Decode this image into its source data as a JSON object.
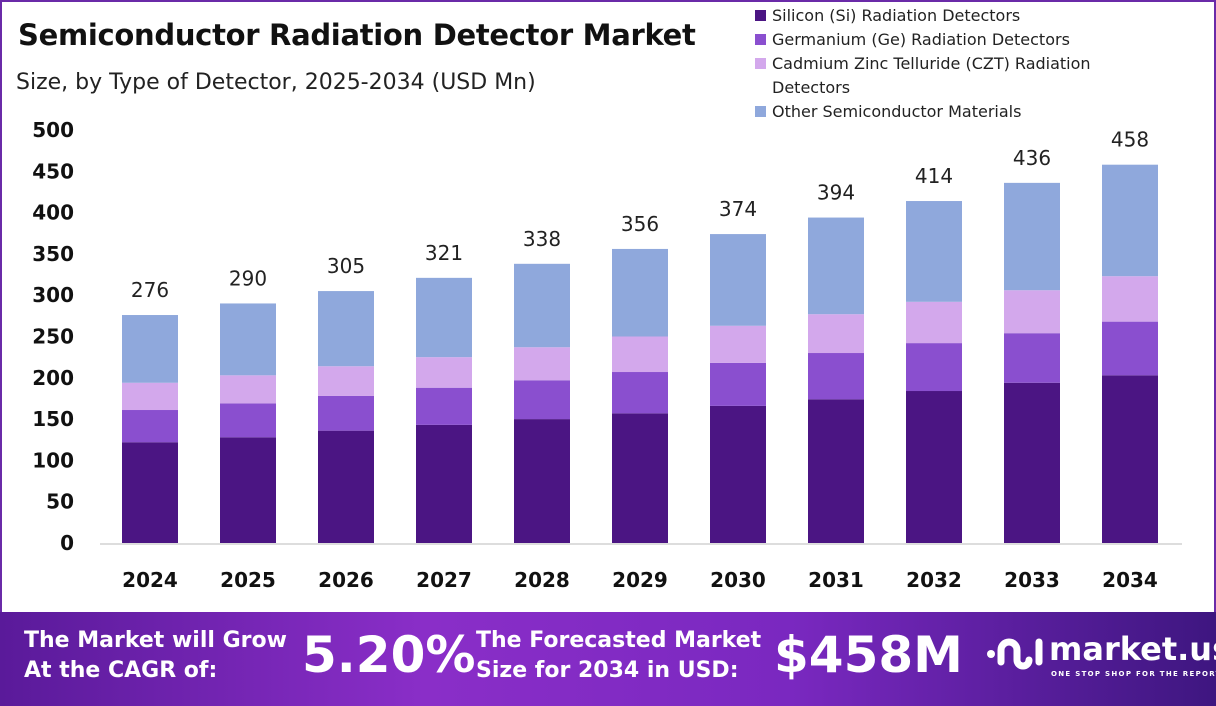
{
  "chart_data": {
    "type": "bar",
    "stacked": true,
    "title": "Semiconductor Radiation Detector Market",
    "subtitle": "Size, by Type of Detector, 2025-2034 (USD Mn)",
    "xlabel": "",
    "ylabel": "",
    "ylim": [
      0,
      500
    ],
    "yticks": [
      0,
      50,
      100,
      150,
      200,
      250,
      300,
      350,
      400,
      450,
      500
    ],
    "grid": false,
    "legend_position": "top-right",
    "categories": [
      "2024",
      "2025",
      "2026",
      "2027",
      "2028",
      "2029",
      "2030",
      "2031",
      "2032",
      "2033",
      "2034"
    ],
    "totals": [
      276,
      290,
      305,
      321,
      338,
      356,
      374,
      394,
      414,
      436,
      458
    ],
    "series": [
      {
        "name": "Silicon (Si) Radiation Detectors",
        "color": "#4b1583",
        "values": [
          122,
          128,
          136,
          143,
          150,
          157,
          166,
          174,
          184,
          194,
          203
        ]
      },
      {
        "name": "Germanium (Ge) Radiation Detectors",
        "color": "#8a4fcf",
        "values": [
          39,
          41,
          42,
          45,
          47,
          50,
          52,
          56,
          58,
          60,
          65
        ]
      },
      {
        "name": "Cadmium Zinc Telluride (CZT) Radiation Detectors",
        "color": "#d3a8ec",
        "values": [
          33,
          34,
          36,
          37,
          40,
          43,
          45,
          47,
          50,
          52,
          55
        ]
      },
      {
        "name": "Other Semiconductor Materials",
        "color": "#8fa8dc",
        "values": [
          82,
          87,
          91,
          96,
          101,
          106,
          111,
          117,
          122,
          130,
          135
        ]
      }
    ]
  },
  "footer": {
    "cagr_label_1": "The Market will Grow",
    "cagr_label_2": "At the CAGR of:",
    "cagr_value": "5.20%",
    "forecast_label_1": "The Forecasted Market",
    "forecast_label_2": "Size for 2034 in USD:",
    "forecast_value": "$458M",
    "brand": "market.us",
    "brand_tagline": "ONE STOP SHOP FOR THE REPORTS"
  }
}
